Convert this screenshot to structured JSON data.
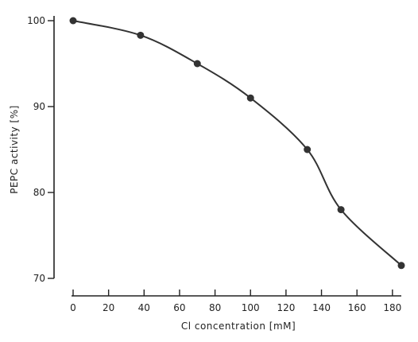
{
  "chart_data": {
    "type": "line",
    "title": "",
    "xlabel": "Cl  concentration  [mM]",
    "ylabel": "PEPC  activity  [%]",
    "xlim": [
      0,
      185
    ],
    "ylim": [
      70,
      100
    ],
    "x_ticks": [
      0,
      20,
      40,
      60,
      80,
      100,
      120,
      140,
      160,
      180
    ],
    "y_ticks": [
      70,
      80,
      90,
      100
    ],
    "x_tick_labels": [
      "0",
      "20",
      "40",
      "60",
      "80",
      "100",
      "120",
      "140",
      "160",
      "180"
    ],
    "y_tick_labels": [
      "70",
      "80",
      "90",
      "100"
    ],
    "grid": false,
    "series": [
      {
        "x": [
          0,
          38,
          70,
          100,
          132,
          151,
          185
        ],
        "y": [
          100,
          98.3,
          95,
          91,
          85,
          78,
          71.5
        ]
      }
    ]
  }
}
